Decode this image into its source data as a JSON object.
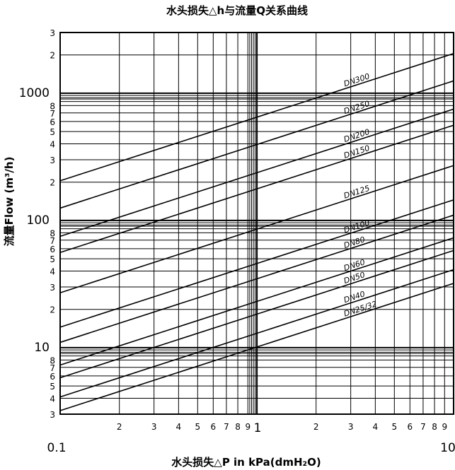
{
  "chart_data": {
    "type": "line",
    "title": "水头损失△h与流量Q关系曲线",
    "xlabel": "水头损失△P in kPa(dmH₂O)",
    "ylabel": "流量Flow (m³/h)",
    "x_scale": "log",
    "y_scale": "log",
    "xlim": [
      0.1,
      10
    ],
    "ylim": [
      3,
      3000
    ],
    "grid": true,
    "x_major_ticks": [
      {
        "value": 0.1,
        "label": "0.1"
      },
      {
        "value": 10,
        "label": "10"
      }
    ],
    "x_minor_ticks": [
      {
        "value": 0.2,
        "label": "2"
      },
      {
        "value": 0.3,
        "label": "3"
      },
      {
        "value": 0.4,
        "label": "4"
      },
      {
        "value": 0.5,
        "label": "5"
      },
      {
        "value": 0.6,
        "label": "6"
      },
      {
        "value": 0.7,
        "label": "7"
      },
      {
        "value": 0.8,
        "label": "8"
      },
      {
        "value": 0.9,
        "label": "9"
      },
      {
        "value": 1,
        "label": "1"
      },
      {
        "value": 2,
        "label": "2"
      },
      {
        "value": 3,
        "label": "3"
      },
      {
        "value": 4,
        "label": "4"
      },
      {
        "value": 5,
        "label": "5"
      },
      {
        "value": 6,
        "label": "6"
      },
      {
        "value": 7,
        "label": "7"
      },
      {
        "value": 8,
        "label": "8"
      },
      {
        "value": 9,
        "label": "9"
      }
    ],
    "y_major_ticks": [
      {
        "value": 10,
        "label": "10"
      },
      {
        "value": 100,
        "label": "100"
      },
      {
        "value": 1000,
        "label": "1000"
      }
    ],
    "y_minor_ticks": [
      {
        "value": 3,
        "label": "3"
      },
      {
        "value": 4,
        "label": "4"
      },
      {
        "value": 5,
        "label": "5"
      },
      {
        "value": 6,
        "label": "6"
      },
      {
        "value": 7,
        "label": "7"
      },
      {
        "value": 8,
        "label": "8"
      },
      {
        "value": 20,
        "label": "2"
      },
      {
        "value": 30,
        "label": "3"
      },
      {
        "value": 40,
        "label": "4"
      },
      {
        "value": 50,
        "label": "5"
      },
      {
        "value": 60,
        "label": "6"
      },
      {
        "value": 70,
        "label": "7"
      },
      {
        "value": 80,
        "label": "8"
      },
      {
        "value": 200,
        "label": "2"
      },
      {
        "value": 300,
        "label": "3"
      },
      {
        "value": 400,
        "label": "4"
      },
      {
        "value": 500,
        "label": "5"
      },
      {
        "value": 600,
        "label": "6"
      },
      {
        "value": 700,
        "label": "7"
      },
      {
        "value": 800,
        "label": "8"
      },
      {
        "value": 2000,
        "label": "2"
      },
      {
        "value": 3000,
        "label": "3"
      }
    ],
    "series": [
      {
        "name": "DN25/32",
        "x": [
          0.1,
          10
        ],
        "y": [
          3.2,
          32
        ],
        "label_at": [
          2.8,
          16.9
        ]
      },
      {
        "name": "DN40",
        "x": [
          0.1,
          10
        ],
        "y": [
          4.1,
          41
        ],
        "label_at": [
          2.8,
          21.7
        ]
      },
      {
        "name": "DN50",
        "x": [
          0.1,
          10
        ],
        "y": [
          5.8,
          58
        ],
        "label_at": [
          2.8,
          30.7
        ]
      },
      {
        "name": "DN60",
        "x": [
          0.1,
          10
        ],
        "y": [
          7.3,
          73
        ],
        "label_at": [
          2.8,
          38.6
        ]
      },
      {
        "name": "DN80",
        "x": [
          0.1,
          10
        ],
        "y": [
          11,
          110
        ],
        "label_at": [
          2.8,
          58.2
        ]
      },
      {
        "name": "DN100",
        "x": [
          0.1,
          10
        ],
        "y": [
          14.5,
          145
        ],
        "label_at": [
          2.8,
          76.7
        ]
      },
      {
        "name": "DN125",
        "x": [
          0.1,
          10
        ],
        "y": [
          27,
          270
        ],
        "label_at": [
          2.8,
          143
        ]
      },
      {
        "name": "DN150",
        "x": [
          0.1,
          10
        ],
        "y": [
          56,
          560
        ],
        "label_at": [
          2.8,
          296
        ]
      },
      {
        "name": "DN200",
        "x": [
          0.1,
          10
        ],
        "y": [
          75,
          750
        ],
        "label_at": [
          2.8,
          397
        ]
      },
      {
        "name": "DN250",
        "x": [
          0.1,
          10
        ],
        "y": [
          125,
          1250
        ],
        "label_at": [
          2.8,
          661
        ]
      },
      {
        "name": "DN300",
        "x": [
          0.1,
          10
        ],
        "y": [
          205,
          2050
        ],
        "label_at": [
          2.8,
          1085
        ]
      }
    ]
  }
}
